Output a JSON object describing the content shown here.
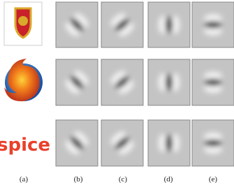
{
  "figure": {
    "labels": [
      "(a)",
      "(b)",
      "(c)",
      "(d)",
      "(e)"
    ],
    "logo_text": "spice"
  }
}
